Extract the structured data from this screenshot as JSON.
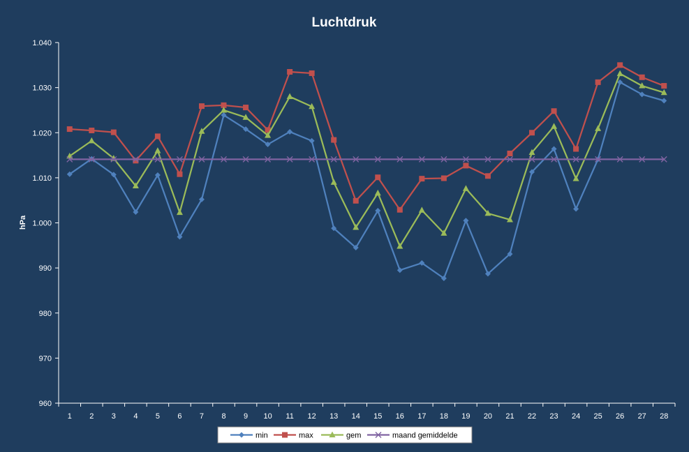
{
  "chart_data": {
    "type": "line",
    "title": "Luchtdruk",
    "xlabel": "",
    "ylabel": "hPa",
    "ylim": [
      960,
      1040
    ],
    "y_ticks": [
      "960",
      "970",
      "980",
      "990",
      "1.000",
      "1.010",
      "1.020",
      "1.030",
      "1.040"
    ],
    "categories": [
      "1",
      "2",
      "3",
      "4",
      "5",
      "6",
      "7",
      "8",
      "9",
      "10",
      "11",
      "12",
      "13",
      "14",
      "15",
      "16",
      "17",
      "18",
      "19",
      "20",
      "21",
      "22",
      "23",
      "24",
      "25",
      "26",
      "27",
      "28"
    ],
    "grid": false,
    "legend_position": "bottom",
    "series": [
      {
        "name": "min",
        "color": "#4F81BD",
        "marker": "diamond",
        "values": [
          1010.8,
          1014.2,
          1010.7,
          1002.4,
          1010.6,
          996.9,
          1005.2,
          1023.9,
          1020.8,
          1017.4,
          1020.2,
          1018.2,
          998.8,
          994.5,
          1002.7,
          989.5,
          991.1,
          987.7,
          1000.5,
          988.7,
          993.1,
          1011.3,
          1016.4,
          1003.1,
          1014.1,
          1031.2,
          1028.5,
          1027.1
        ]
      },
      {
        "name": "max",
        "color": "#C0504D",
        "marker": "square",
        "values": [
          1020.8,
          1020.5,
          1020.1,
          1013.8,
          1019.2,
          1010.8,
          1025.9,
          1026.1,
          1025.6,
          1020.6,
          1033.5,
          1033.2,
          1018.4,
          1004.9,
          1010.1,
          1002.9,
          1009.8,
          1009.9,
          1012.7,
          1010.4,
          1015.4,
          1020.0,
          1024.8,
          1016.4,
          1031.2,
          1035.0,
          1032.3,
          1030.4
        ]
      },
      {
        "name": "gem",
        "color": "#9BBB59",
        "marker": "triangle",
        "values": [
          1014.8,
          1018.2,
          1014.3,
          1008.2,
          1016.0,
          1002.3,
          1020.3,
          1025.0,
          1023.4,
          1019.4,
          1028.0,
          1025.8,
          1009.0,
          999.0,
          1006.6,
          994.8,
          1002.8,
          997.7,
          1007.6,
          1002.1,
          1000.7,
          1015.6,
          1021.4,
          1009.8,
          1020.9,
          1033.1,
          1030.4,
          1028.9
        ]
      },
      {
        "name": "maand gemiddelde",
        "color": "#8064A2",
        "marker": "x",
        "values": [
          1014.1,
          1014.1,
          1014.1,
          1014.1,
          1014.1,
          1014.1,
          1014.1,
          1014.1,
          1014.1,
          1014.1,
          1014.1,
          1014.1,
          1014.1,
          1014.1,
          1014.1,
          1014.1,
          1014.1,
          1014.1,
          1014.1,
          1014.1,
          1014.1,
          1014.1,
          1014.1,
          1014.1,
          1014.1,
          1014.1,
          1014.1,
          1014.1
        ]
      }
    ]
  },
  "colors": {
    "background": "#1F3D5E",
    "axis": "#FFFFFF",
    "legend_background": "#FFFFFF"
  }
}
